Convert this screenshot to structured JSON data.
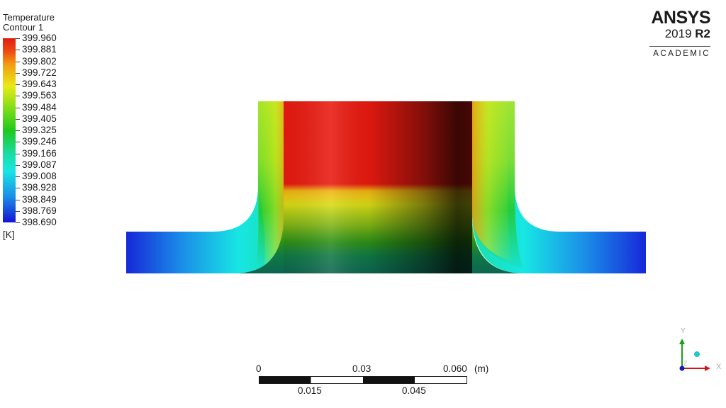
{
  "legend": {
    "title_line1": "Temperature",
    "title_line2": "Contour 1",
    "ticks": [
      "399.960",
      "399.881",
      "399.802",
      "399.722",
      "399.643",
      "399.563",
      "399.484",
      "399.405",
      "399.325",
      "399.246",
      "399.166",
      "399.087",
      "399.008",
      "398.928",
      "398.849",
      "398.769",
      "398.690"
    ],
    "unit": "[K]"
  },
  "logo": {
    "name": "ANSYS",
    "version_year": "2019",
    "version_release": "R2",
    "edition": "ACADEMIC"
  },
  "scale": {
    "top_labels": [
      "0",
      "0.03",
      "0.060"
    ],
    "bottom_labels": [
      "0.015",
      "0.045"
    ],
    "unit": "(m)"
  },
  "triad": {
    "x_label": "X",
    "y_label": "Y",
    "z_label": "Z"
  },
  "colors": {
    "max": "#e01d10",
    "orange": "#f39a12",
    "yellow": "#e8ea16",
    "green": "#1fc81c",
    "cyan": "#18e6e4",
    "min": "#1414d4"
  }
}
